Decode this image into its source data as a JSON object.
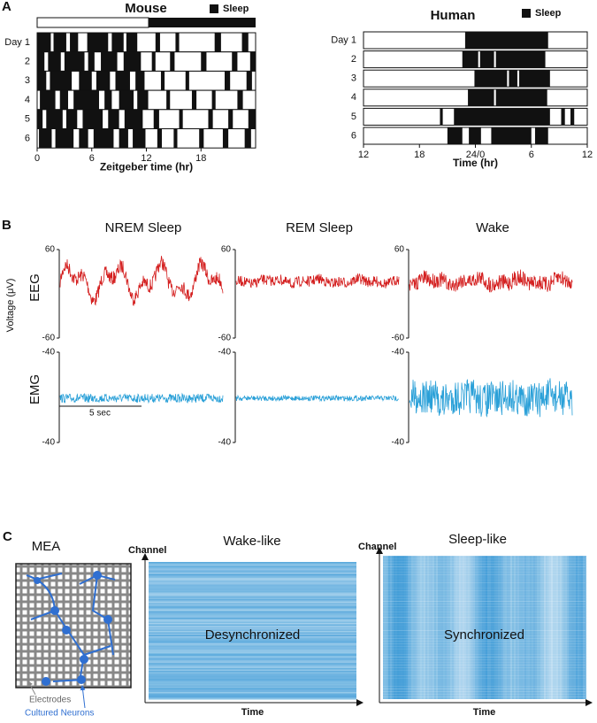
{
  "panel_a": {
    "label": "A",
    "mouse": {
      "title": "Mouse",
      "legend": "Sleep",
      "xlabel": "Zeitgeber time (hr)",
      "xlim": [
        0,
        24
      ],
      "xticks": [
        0,
        6,
        12,
        18
      ],
      "days": [
        "Day 1",
        "2",
        "3",
        "4",
        "5",
        "6"
      ],
      "sleep": [
        [
          [
            0,
            1.5
          ],
          [
            1.8,
            3.2
          ],
          [
            3.6,
            4.5
          ],
          [
            5.5,
            7.8
          ],
          [
            8.2,
            9.5
          ],
          [
            9.8,
            11.0
          ],
          [
            13.0,
            13.5
          ],
          [
            15.2,
            15.6
          ],
          [
            19.5,
            20.2
          ],
          [
            22.5,
            23.2
          ]
        ],
        [
          [
            0,
            0.8
          ],
          [
            1.2,
            2.6
          ],
          [
            3.0,
            5.2
          ],
          [
            5.6,
            6.3
          ],
          [
            7.0,
            8.8
          ],
          [
            9.5,
            11.4
          ],
          [
            12.6,
            13.0
          ],
          [
            14.6,
            15.1
          ],
          [
            18.0,
            18.6
          ],
          [
            21.4,
            22.0
          ],
          [
            23.4,
            24
          ]
        ],
        [
          [
            0,
            1.0
          ],
          [
            1.4,
            3.8
          ],
          [
            4.6,
            6.0
          ],
          [
            6.5,
            8.0
          ],
          [
            8.6,
            10.2
          ],
          [
            10.8,
            11.8
          ],
          [
            13.6,
            14.0
          ],
          [
            16.3,
            16.7
          ],
          [
            20.6,
            21.2
          ],
          [
            23.0,
            23.6
          ]
        ],
        [
          [
            0.3,
            2.0
          ],
          [
            2.5,
            3.4
          ],
          [
            4.0,
            6.8
          ],
          [
            7.4,
            8.2
          ],
          [
            9.0,
            10.6
          ],
          [
            11.0,
            12.2
          ],
          [
            14.2,
            14.6
          ],
          [
            17.0,
            17.5
          ],
          [
            19.2,
            19.6
          ],
          [
            22.0,
            22.6
          ]
        ],
        [
          [
            0,
            0.6
          ],
          [
            1.0,
            2.8
          ],
          [
            3.2,
            4.4
          ],
          [
            5.0,
            7.2
          ],
          [
            7.8,
            9.0
          ],
          [
            9.6,
            11.6
          ],
          [
            12.8,
            13.4
          ],
          [
            15.6,
            16.0
          ],
          [
            18.8,
            19.3
          ],
          [
            21.0,
            21.5
          ],
          [
            23.2,
            24
          ]
        ],
        [
          [
            0.2,
            1.6
          ],
          [
            2.0,
            4.0
          ],
          [
            4.6,
            5.6
          ],
          [
            6.2,
            8.4
          ],
          [
            9.0,
            10.0
          ],
          [
            10.5,
            11.9
          ],
          [
            13.2,
            13.7
          ],
          [
            15.0,
            15.4
          ],
          [
            17.8,
            18.3
          ],
          [
            20.4,
            21.0
          ],
          [
            22.8,
            23.5
          ]
        ]
      ]
    },
    "human": {
      "title": "Human",
      "legend": "Sleep",
      "xlabel": "Time (hr)",
      "xlim": [
        12,
        36
      ],
      "xticks": [
        12,
        18,
        {
          "value": 24,
          "label": "24/0"
        },
        {
          "value": 30,
          "label": "6"
        },
        {
          "value": 36,
          "label": "12"
        }
      ],
      "days": [
        "Day 1",
        "2",
        "3",
        "4",
        "5",
        "6"
      ],
      "sleep": [
        [
          [
            22.9,
            31.8
          ]
        ],
        [
          [
            22.6,
            24.3
          ],
          [
            24.5,
            26.0
          ],
          [
            26.2,
            31.5
          ]
        ],
        [
          [
            23.9,
            27.4
          ],
          [
            27.6,
            28.5
          ],
          [
            28.7,
            32.0
          ]
        ],
        [
          [
            23.2,
            26.0
          ],
          [
            26.2,
            31.7
          ]
        ],
        [
          [
            20.2,
            20.5
          ],
          [
            21.7,
            32.0
          ],
          [
            33.2,
            33.6
          ],
          [
            34.2,
            34.6
          ]
        ],
        [
          [
            21.0,
            22.6
          ],
          [
            23.3,
            24.6
          ],
          [
            25.7,
            30.0
          ],
          [
            30.4,
            31.8
          ]
        ]
      ]
    }
  },
  "panel_b": {
    "label": "B",
    "states": [
      "NREM Sleep",
      "REM Sleep",
      "Wake"
    ],
    "eeg_label": "EEG",
    "emg_label": "EMG",
    "ylabel": "Voltage (μV)",
    "eeg_ticks": [
      60,
      -60
    ],
    "emg_ticks": [
      -40,
      -40
    ],
    "scale_bar": "5 sec"
  },
  "panel_c": {
    "label": "C",
    "mea": {
      "title": "MEA",
      "electrodes": "Electrodes",
      "neurons": "Cultured Neurons"
    },
    "maps": [
      {
        "title": "Wake-like",
        "text": "Desynchronized",
        "xlabel": "Time",
        "ylabel": "Channel"
      },
      {
        "title": "Sleep-like",
        "text": "Synchronized",
        "xlabel": "Time",
        "ylabel": "Channel"
      }
    ]
  }
}
